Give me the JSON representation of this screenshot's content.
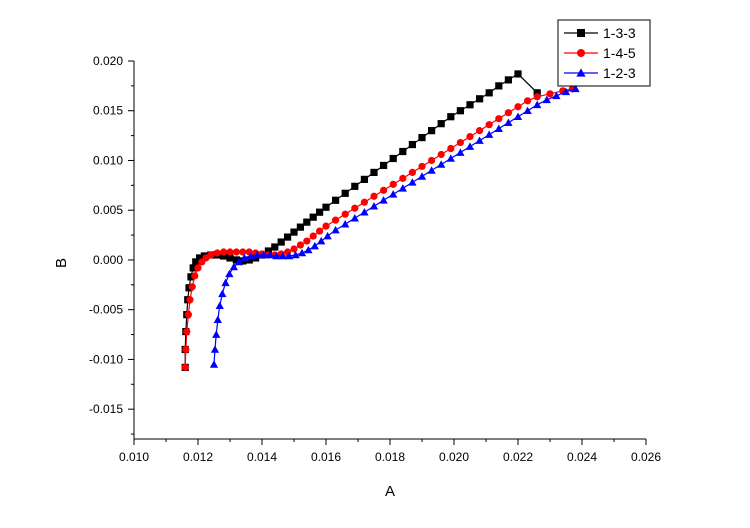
{
  "chart_data": {
    "type": "scatter",
    "title": "",
    "xlabel": "A",
    "ylabel": "B",
    "xlim": [
      0.01,
      0.026
    ],
    "ylim": [
      -0.018,
      0.02
    ],
    "xticks": [
      "0.010",
      "0.012",
      "0.014",
      "0.016",
      "0.018",
      "0.020",
      "0.022",
      "0.024",
      "0.026"
    ],
    "yticks": [
      "-0.015",
      "-0.010",
      "-0.005",
      "0.000",
      "0.005",
      "0.010",
      "0.015",
      "0.020"
    ],
    "grid": false,
    "legend": "top-right",
    "series": [
      {
        "name": "1-3-3",
        "color": "#000000",
        "marker": "square",
        "points": [
          [
            0.0116,
            -0.0108
          ],
          [
            0.0116,
            -0.009
          ],
          [
            0.01162,
            -0.0072
          ],
          [
            0.01165,
            -0.0055
          ],
          [
            0.01168,
            -0.004
          ],
          [
            0.01172,
            -0.0028
          ],
          [
            0.01178,
            -0.0017
          ],
          [
            0.01185,
            -0.0008
          ],
          [
            0.01193,
            -0.0002
          ],
          [
            0.01205,
            0.0002
          ],
          [
            0.0122,
            0.0004
          ],
          [
            0.0124,
            0.0005
          ],
          [
            0.0126,
            0.0005
          ],
          [
            0.0128,
            0.0004
          ],
          [
            0.013,
            0.0002
          ],
          [
            0.0132,
            0.0
          ],
          [
            0.0134,
            -0.0001
          ],
          [
            0.0136,
            0.0
          ],
          [
            0.0138,
            0.0002
          ],
          [
            0.014,
            0.0005
          ],
          [
            0.0142,
            0.0009
          ],
          [
            0.0144,
            0.0013
          ],
          [
            0.0146,
            0.0018
          ],
          [
            0.0148,
            0.0023
          ],
          [
            0.015,
            0.0028
          ],
          [
            0.0152,
            0.0033
          ],
          [
            0.0154,
            0.0038
          ],
          [
            0.0156,
            0.0043
          ],
          [
            0.0158,
            0.0048
          ],
          [
            0.016,
            0.0053
          ],
          [
            0.0163,
            0.006
          ],
          [
            0.0166,
            0.0067
          ],
          [
            0.0169,
            0.0074
          ],
          [
            0.0172,
            0.0081
          ],
          [
            0.0175,
            0.0088
          ],
          [
            0.0178,
            0.0095
          ],
          [
            0.0181,
            0.0102
          ],
          [
            0.0184,
            0.0109
          ],
          [
            0.0187,
            0.0116
          ],
          [
            0.019,
            0.0123
          ],
          [
            0.0193,
            0.013
          ],
          [
            0.0196,
            0.0137
          ],
          [
            0.0199,
            0.0144
          ],
          [
            0.0202,
            0.015
          ],
          [
            0.0205,
            0.0156
          ],
          [
            0.0208,
            0.0162
          ],
          [
            0.0211,
            0.0168
          ],
          [
            0.0214,
            0.0175
          ],
          [
            0.0217,
            0.0181
          ],
          [
            0.022,
            0.0187
          ],
          [
            0.0226,
            0.0168
          ]
        ]
      },
      {
        "name": "1-4-5",
        "color": "#ff0000",
        "marker": "circle",
        "points": [
          [
            0.0116,
            -0.0108
          ],
          [
            0.01162,
            -0.009
          ],
          [
            0.01165,
            -0.0072
          ],
          [
            0.0117,
            -0.0055
          ],
          [
            0.01175,
            -0.004
          ],
          [
            0.01182,
            -0.0027
          ],
          [
            0.0119,
            -0.0016
          ],
          [
            0.012,
            -0.0008
          ],
          [
            0.01212,
            -0.0002
          ],
          [
            0.01225,
            0.0002
          ],
          [
            0.0124,
            0.0005
          ],
          [
            0.0126,
            0.0007
          ],
          [
            0.0128,
            0.0008
          ],
          [
            0.013,
            0.0008
          ],
          [
            0.0132,
            0.0008
          ],
          [
            0.0134,
            0.0008
          ],
          [
            0.0136,
            0.0008
          ],
          [
            0.0138,
            0.0007
          ],
          [
            0.014,
            0.0006
          ],
          [
            0.0142,
            0.0005
          ],
          [
            0.0144,
            0.0005
          ],
          [
            0.0146,
            0.0006
          ],
          [
            0.0148,
            0.0008
          ],
          [
            0.015,
            0.0011
          ],
          [
            0.0152,
            0.0015
          ],
          [
            0.0154,
            0.0019
          ],
          [
            0.0156,
            0.0024
          ],
          [
            0.0158,
            0.0029
          ],
          [
            0.016,
            0.0034
          ],
          [
            0.0163,
            0.004
          ],
          [
            0.0166,
            0.0046
          ],
          [
            0.0169,
            0.0052
          ],
          [
            0.0172,
            0.0058
          ],
          [
            0.0175,
            0.0064
          ],
          [
            0.0178,
            0.007
          ],
          [
            0.0181,
            0.0076
          ],
          [
            0.0184,
            0.0082
          ],
          [
            0.0187,
            0.0088
          ],
          [
            0.019,
            0.0094
          ],
          [
            0.0193,
            0.01
          ],
          [
            0.0196,
            0.0106
          ],
          [
            0.0199,
            0.0112
          ],
          [
            0.0202,
            0.0118
          ],
          [
            0.0205,
            0.0124
          ],
          [
            0.0208,
            0.013
          ],
          [
            0.0211,
            0.0136
          ],
          [
            0.0214,
            0.0142
          ],
          [
            0.0217,
            0.0148
          ],
          [
            0.022,
            0.0154
          ],
          [
            0.0223,
            0.016
          ],
          [
            0.0226,
            0.0164
          ],
          [
            0.023,
            0.0167
          ],
          [
            0.0234,
            0.017
          ],
          [
            0.0237,
            0.0172
          ]
        ]
      },
      {
        "name": "1-2-3",
        "color": "#0000ff",
        "marker": "triangle",
        "points": [
          [
            0.0125,
            -0.0105
          ],
          [
            0.01253,
            -0.009
          ],
          [
            0.01257,
            -0.0075
          ],
          [
            0.01262,
            -0.006
          ],
          [
            0.01268,
            -0.0046
          ],
          [
            0.01276,
            -0.0034
          ],
          [
            0.01286,
            -0.0023
          ],
          [
            0.01298,
            -0.0014
          ],
          [
            0.01312,
            -0.0007
          ],
          [
            0.01328,
            -0.0002
          ],
          [
            0.01345,
            0.0002
          ],
          [
            0.01365,
            0.0004
          ],
          [
            0.01385,
            0.0005
          ],
          [
            0.01405,
            0.0005
          ],
          [
            0.01425,
            0.0005
          ],
          [
            0.01445,
            0.0004
          ],
          [
            0.01465,
            0.0004
          ],
          [
            0.01485,
            0.0004
          ],
          [
            0.01505,
            0.0005
          ],
          [
            0.01525,
            0.0007
          ],
          [
            0.01545,
            0.001
          ],
          [
            0.01565,
            0.0014
          ],
          [
            0.01585,
            0.0019
          ],
          [
            0.01605,
            0.0024
          ],
          [
            0.0163,
            0.003
          ],
          [
            0.0166,
            0.0036
          ],
          [
            0.0169,
            0.0042
          ],
          [
            0.0172,
            0.0048
          ],
          [
            0.0175,
            0.0054
          ],
          [
            0.0178,
            0.006
          ],
          [
            0.0181,
            0.0066
          ],
          [
            0.0184,
            0.0072
          ],
          [
            0.0187,
            0.0078
          ],
          [
            0.019,
            0.0084
          ],
          [
            0.0193,
            0.009
          ],
          [
            0.0196,
            0.0096
          ],
          [
            0.0199,
            0.0102
          ],
          [
            0.0202,
            0.0108
          ],
          [
            0.0205,
            0.0114
          ],
          [
            0.0208,
            0.012
          ],
          [
            0.0211,
            0.0126
          ],
          [
            0.0214,
            0.0132
          ],
          [
            0.0217,
            0.0138
          ],
          [
            0.022,
            0.0144
          ],
          [
            0.0223,
            0.015
          ],
          [
            0.0226,
            0.0156
          ],
          [
            0.0229,
            0.0161
          ],
          [
            0.0232,
            0.0165
          ],
          [
            0.0235,
            0.0169
          ],
          [
            0.0238,
            0.0172
          ]
        ]
      }
    ]
  }
}
